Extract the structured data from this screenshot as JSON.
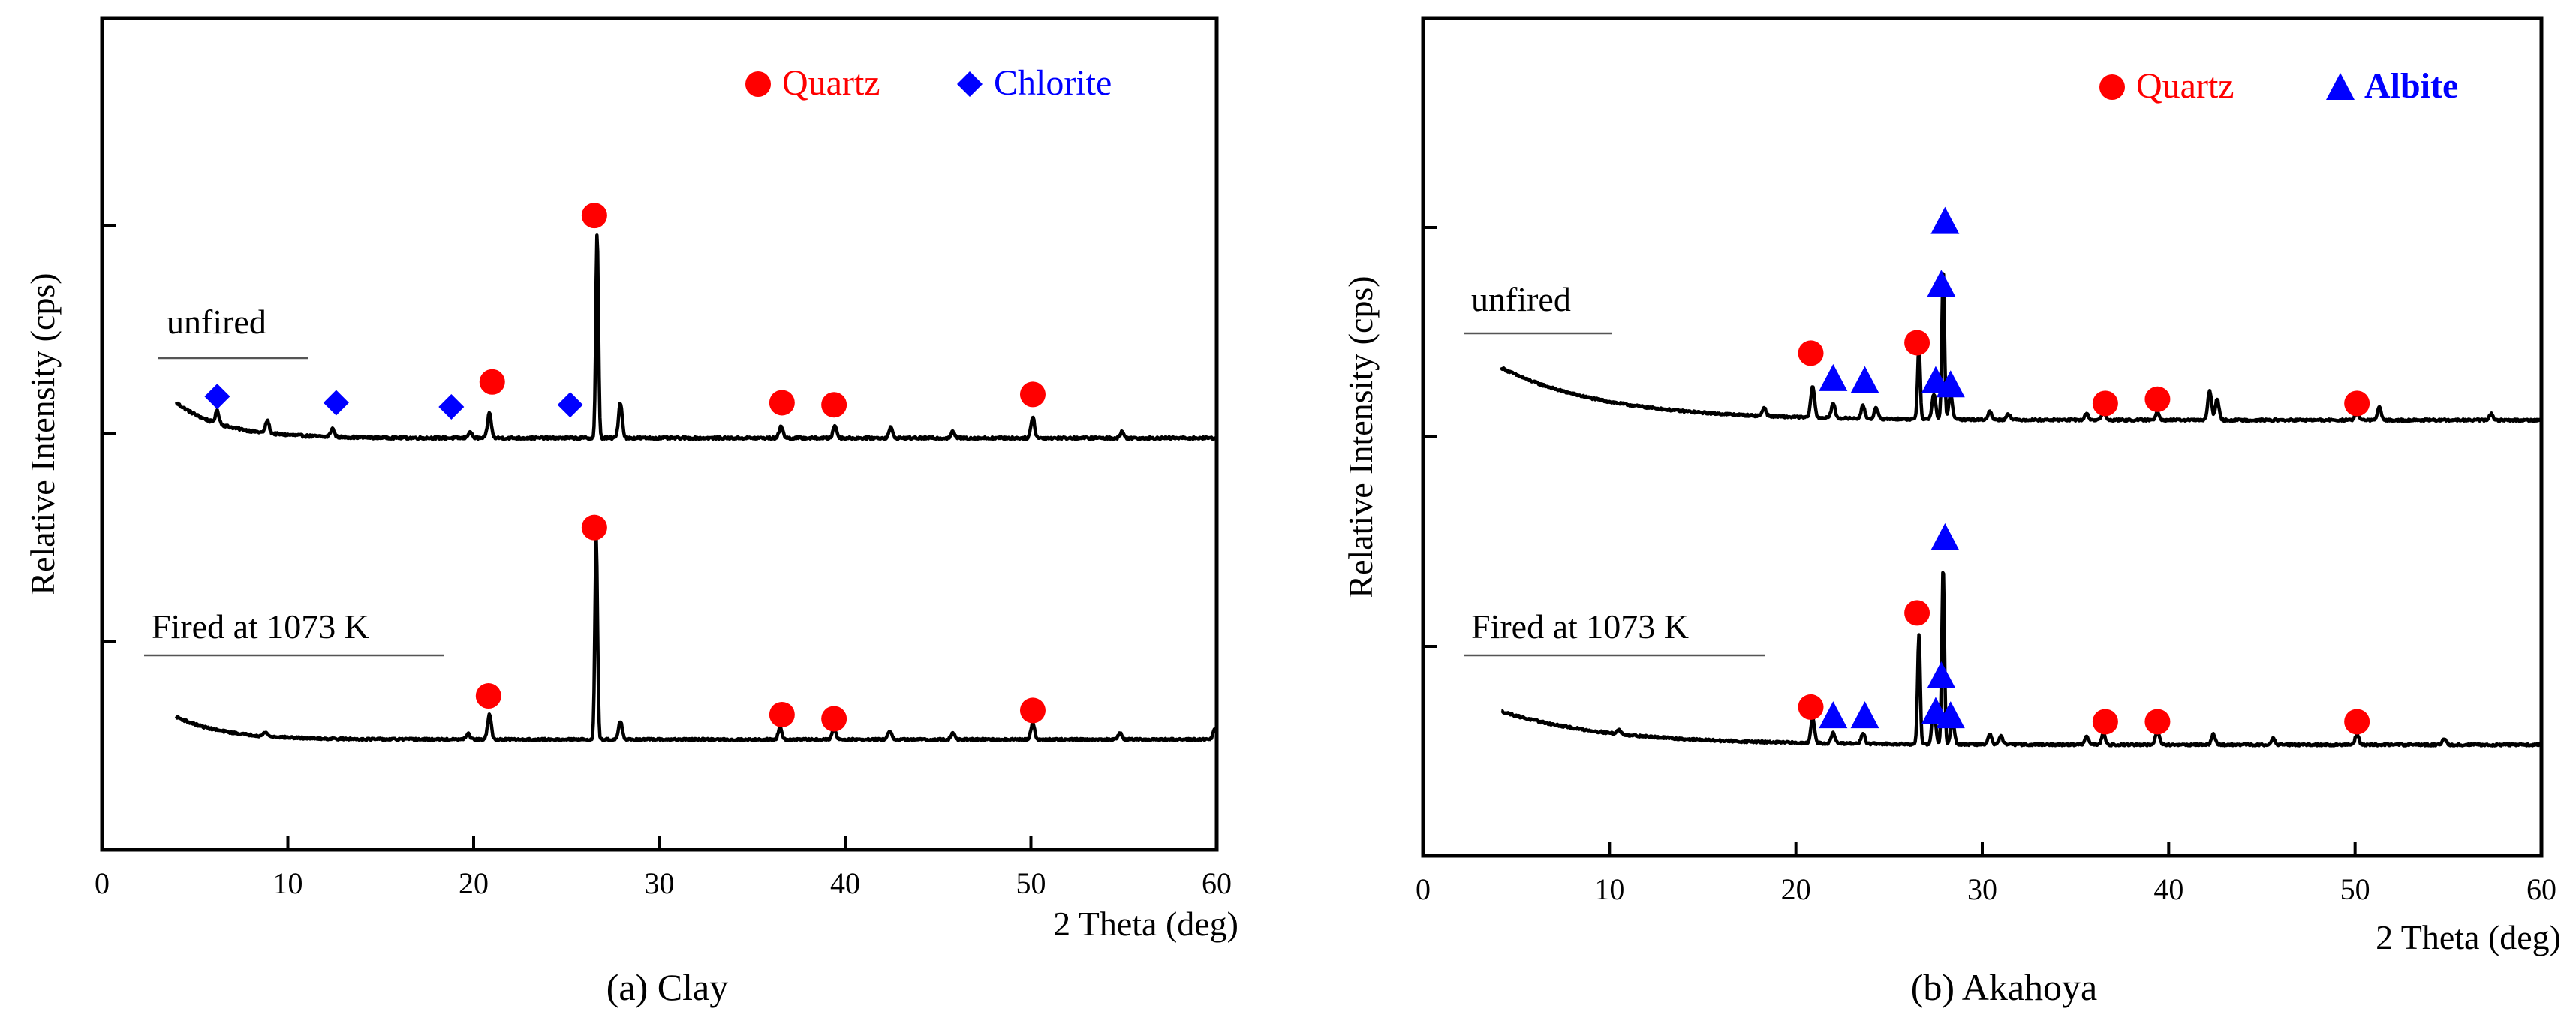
{
  "colors": {
    "quartz": "#ff0000",
    "chlorite": "#0000ff",
    "albite": "#0000ff",
    "line": "#000000"
  },
  "chart_data": [
    {
      "id": "clay",
      "type": "line",
      "caption": "(a) Clay",
      "xlabel": "2 Theta (deg)",
      "ylabel": "Relative Intensity  (cps)",
      "xlim": [
        0,
        60
      ],
      "xticks": [
        0,
        10,
        20,
        30,
        40,
        50,
        60
      ],
      "ylim": [
        0,
        4
      ],
      "yticks": [
        1,
        2,
        3
      ],
      "legend": [
        {
          "label": "Quartz",
          "marker": "circle",
          "color": "#ff0000",
          "bold": false
        },
        {
          "label": "Chlorite",
          "marker": "diamond",
          "color": "#0000ff",
          "bold": false
        }
      ],
      "series": [
        {
          "name": "unfired",
          "label": "unfired",
          "baseline": 1.98,
          "start": [
            4.0,
            2.15
          ],
          "decay_end": 12.0,
          "noise": 0.012,
          "peaks": [
            [
              6.2,
              0.06
            ],
            [
              8.9,
              0.06
            ],
            [
              12.4,
              0.04
            ],
            [
              19.8,
              0.03
            ],
            [
              20.85,
              0.12
            ],
            [
              26.65,
              0.98
            ],
            [
              27.9,
              0.17
            ],
            [
              36.55,
              0.06
            ],
            [
              39.45,
              0.06
            ],
            [
              42.45,
              0.05
            ],
            [
              45.8,
              0.03
            ],
            [
              50.1,
              0.1
            ],
            [
              54.9,
              0.03
            ]
          ],
          "markers": [
            {
              "phase": "Chlorite",
              "x": 6.2,
              "y": 2.18
            },
            {
              "phase": "Chlorite",
              "x": 12.6,
              "y": 2.15
            },
            {
              "phase": "Chlorite",
              "x": 18.8,
              "y": 2.13
            },
            {
              "phase": "Chlorite",
              "x": 25.2,
              "y": 2.14
            },
            {
              "phase": "Quartz",
              "x": 21.0,
              "y": 2.25
            },
            {
              "phase": "Quartz",
              "x": 26.5,
              "y": 3.05
            },
            {
              "phase": "Quartz",
              "x": 36.6,
              "y": 2.15
            },
            {
              "phase": "Quartz",
              "x": 39.4,
              "y": 2.14
            },
            {
              "phase": "Quartz",
              "x": 50.1,
              "y": 2.19
            }
          ]
        },
        {
          "name": "fired",
          "label": "Fired at 1073 K",
          "baseline": 0.53,
          "start": [
            4.0,
            0.64
          ],
          "decay_end": 12.0,
          "noise": 0.01,
          "peaks": [
            [
              8.8,
              0.02
            ],
            [
              19.7,
              0.03
            ],
            [
              20.85,
              0.12
            ],
            [
              26.6,
              0.98
            ],
            [
              27.9,
              0.09
            ],
            [
              36.5,
              0.06
            ],
            [
              39.4,
              0.06
            ],
            [
              42.4,
              0.04
            ],
            [
              45.8,
              0.03
            ],
            [
              50.1,
              0.08
            ],
            [
              54.8,
              0.03
            ],
            [
              59.9,
              0.05
            ]
          ],
          "markers": [
            {
              "phase": "Quartz",
              "x": 20.8,
              "y": 0.74
            },
            {
              "phase": "Quartz",
              "x": 26.5,
              "y": 1.55
            },
            {
              "phase": "Quartz",
              "x": 36.6,
              "y": 0.65
            },
            {
              "phase": "Quartz",
              "x": 39.4,
              "y": 0.63
            },
            {
              "phase": "Quartz",
              "x": 50.1,
              "y": 0.67
            }
          ]
        }
      ]
    },
    {
      "id": "akahoya",
      "type": "line",
      "caption": "(b) Akahoya",
      "xlabel": "2 Theta (deg)",
      "ylabel": "Relative Intensity  (cps)",
      "xlim": [
        0,
        60
      ],
      "xticks": [
        0,
        10,
        20,
        30,
        40,
        50,
        60
      ],
      "ylim": [
        0,
        4
      ],
      "yticks": [
        1,
        2,
        3
      ],
      "legend": [
        {
          "label": "Quartz",
          "marker": "circle",
          "color": "#ff0000",
          "bold": false
        },
        {
          "label": "Albite",
          "marker": "triangle",
          "color": "#0000ff",
          "bold": true
        }
      ],
      "series": [
        {
          "name": "unfired",
          "label": "unfired",
          "baseline": 2.08,
          "start": [
            4.2,
            2.33
          ],
          "decay_end": 22.0,
          "noise": 0.01,
          "peaks": [
            [
              18.3,
              0.04
            ],
            [
              20.9,
              0.15
            ],
            [
              22.0,
              0.07
            ],
            [
              23.6,
              0.06
            ],
            [
              24.3,
              0.05
            ],
            [
              26.6,
              0.35
            ],
            [
              27.4,
              0.12
            ],
            [
              27.9,
              0.72
            ],
            [
              28.3,
              0.12
            ],
            [
              30.4,
              0.04
            ],
            [
              31.4,
              0.03
            ],
            [
              35.6,
              0.03
            ],
            [
              36.5,
              0.04
            ],
            [
              39.4,
              0.04
            ],
            [
              42.2,
              0.14
            ],
            [
              42.6,
              0.1
            ],
            [
              50.1,
              0.04
            ],
            [
              51.3,
              0.06
            ],
            [
              57.3,
              0.03
            ]
          ],
          "markers": [
            {
              "phase": "Quartz",
              "x": 20.8,
              "y": 2.4
            },
            {
              "phase": "Quartz",
              "x": 26.5,
              "y": 2.45
            },
            {
              "phase": "Quartz",
              "x": 36.6,
              "y": 2.16
            },
            {
              "phase": "Quartz",
              "x": 39.4,
              "y": 2.18
            },
            {
              "phase": "Quartz",
              "x": 50.1,
              "y": 2.16
            },
            {
              "phase": "Albite",
              "x": 22.0,
              "y": 2.28
            },
            {
              "phase": "Albite",
              "x": 23.7,
              "y": 2.27
            },
            {
              "phase": "Albite",
              "x": 27.5,
              "y": 2.27
            },
            {
              "phase": "Albite",
              "x": 28.3,
              "y": 2.25
            },
            {
              "phase": "Albite",
              "x": 27.8,
              "y": 2.73
            },
            {
              "phase": "Albite",
              "x": 28.0,
              "y": 3.03
            }
          ]
        },
        {
          "name": "fired",
          "label": "Fired at 1073 K",
          "baseline": 0.53,
          "start": [
            4.2,
            0.69
          ],
          "decay_end": 22.0,
          "noise": 0.01,
          "peaks": [
            [
              10.5,
              0.02
            ],
            [
              20.9,
              0.12
            ],
            [
              22.0,
              0.05
            ],
            [
              23.6,
              0.05
            ],
            [
              26.6,
              0.52
            ],
            [
              27.4,
              0.18
            ],
            [
              27.9,
              0.85
            ],
            [
              28.4,
              0.12
            ],
            [
              30.4,
              0.05
            ],
            [
              31.0,
              0.04
            ],
            [
              35.6,
              0.04
            ],
            [
              36.5,
              0.05
            ],
            [
              39.4,
              0.07
            ],
            [
              42.4,
              0.05
            ],
            [
              45.6,
              0.03
            ],
            [
              50.1,
              0.05
            ],
            [
              54.8,
              0.03
            ]
          ],
          "markers": [
            {
              "phase": "Quartz",
              "x": 20.8,
              "y": 0.71
            },
            {
              "phase": "Quartz",
              "x": 26.5,
              "y": 1.16
            },
            {
              "phase": "Quartz",
              "x": 36.6,
              "y": 0.64
            },
            {
              "phase": "Quartz",
              "x": 39.4,
              "y": 0.64
            },
            {
              "phase": "Quartz",
              "x": 50.1,
              "y": 0.64
            },
            {
              "phase": "Albite",
              "x": 22.0,
              "y": 0.67
            },
            {
              "phase": "Albite",
              "x": 23.7,
              "y": 0.67
            },
            {
              "phase": "Albite",
              "x": 27.5,
              "y": 0.69
            },
            {
              "phase": "Albite",
              "x": 28.3,
              "y": 0.67
            },
            {
              "phase": "Albite",
              "x": 27.8,
              "y": 0.86
            },
            {
              "phase": "Albite",
              "x": 28.0,
              "y": 1.52
            }
          ]
        }
      ]
    }
  ]
}
